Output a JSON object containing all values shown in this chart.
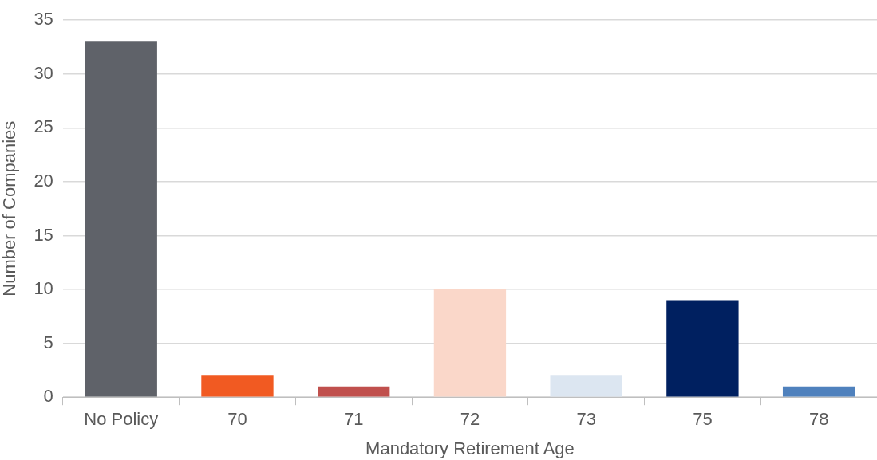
{
  "chart_data": {
    "type": "bar",
    "categories": [
      "No Policy",
      "70",
      "71",
      "72",
      "73",
      "75",
      "78"
    ],
    "values": [
      33,
      2,
      1,
      10,
      2,
      9,
      1
    ],
    "colors": [
      "#5f6269",
      "#f15a22",
      "#c0504d",
      "#fad7c9",
      "#dce6f1",
      "#002060",
      "#4f81bd"
    ],
    "xlabel": "Mandatory Retirement Age",
    "ylabel": "Number of Companies",
    "ylim": [
      0,
      35
    ],
    "yticks": [
      0,
      5,
      10,
      15,
      20,
      25,
      30,
      35
    ],
    "grid": "y",
    "legend": false
  }
}
